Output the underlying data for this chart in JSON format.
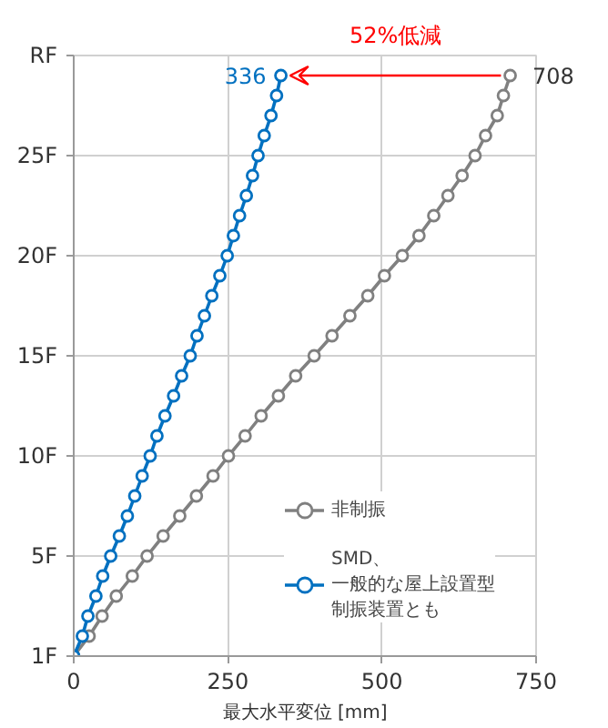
{
  "chart_data": {
    "type": "line",
    "orientation": "horizontal",
    "xlabel": "最大水平変位 [mm]",
    "xlim": [
      0,
      750
    ],
    "xticks": [
      0,
      250,
      500,
      750
    ],
    "categories": [
      "RF",
      null,
      null,
      null,
      null,
      "25F",
      null,
      null,
      null,
      null,
      "20F",
      null,
      null,
      null,
      null,
      "15F",
      null,
      null,
      null,
      null,
      "10F",
      null,
      null,
      null,
      null,
      "5F",
      null,
      null,
      null,
      null,
      "1F"
    ],
    "grid": true,
    "legend": "bottom right",
    "marker": "circle",
    "line_style": "solid",
    "annotations": [
      "52%低減"
    ],
    "series": [
      {
        "name": "非制振",
        "color": "#808080",
        "values": [
          null,
          708,
          697,
          687,
          668,
          651,
          630,
          607,
          584,
          560,
          533,
          504,
          477,
          448,
          419,
          390,
          360,
          332,
          304,
          278,
          251,
          226,
          199,
          172,
          145,
          119,
          95,
          69,
          46,
          25,
          0
        ],
        "value_labels": [
          null,
          "708",
          null,
          null,
          null,
          null,
          null,
          null,
          null,
          null,
          null,
          null,
          null,
          null,
          null,
          null,
          null,
          null,
          null,
          null,
          null,
          null,
          null,
          null,
          null,
          null,
          null,
          null,
          null,
          null,
          null
        ]
      },
      {
        "name": "SMD、一般的な屋上設置型制振装置とも",
        "color": "#0070c0",
        "values": [
          null,
          336,
          329,
          320,
          309,
          299,
          290,
          280,
          269,
          259,
          249,
          237,
          224,
          212,
          200,
          189,
          175,
          162,
          148,
          135,
          124,
          111,
          99,
          87,
          74,
          60,
          47,
          36,
          23,
          14,
          0
        ],
        "value_labels": [
          null,
          "336",
          null,
          null,
          null,
          null,
          null,
          null,
          null,
          null,
          null,
          null,
          null,
          null,
          null,
          null,
          null,
          null,
          null,
          null,
          null,
          null,
          null,
          null,
          null,
          null,
          null,
          null,
          null,
          null,
          null
        ]
      }
    ]
  }
}
